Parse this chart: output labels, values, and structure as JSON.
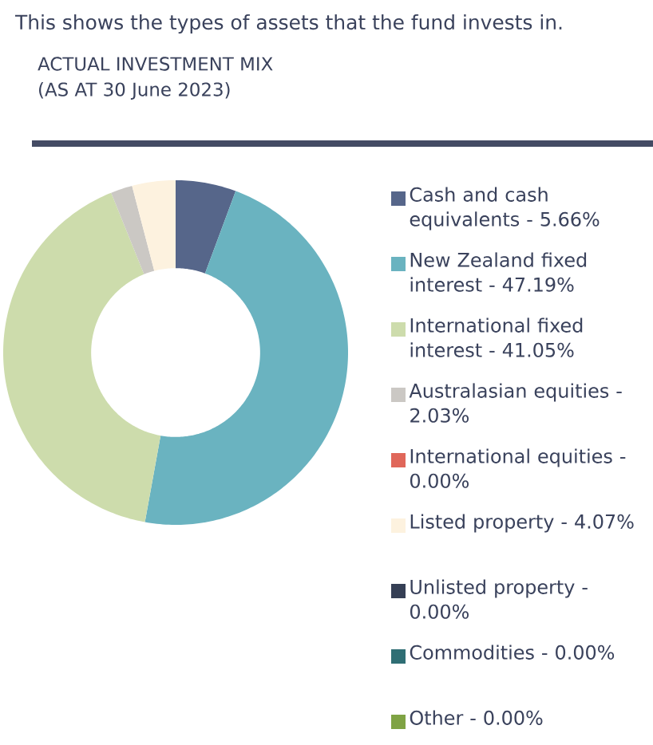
{
  "chart_data": {
    "type": "donut",
    "title": "ACTUAL INVESTMENT MIX",
    "subtitle": "(AS AT 30 June 2023)",
    "annotations": [
      "This shows the types of assets that the fund invests in."
    ],
    "categories": [
      "Cash and cash equivalents - 5.66%",
      "New Zealand fixed interest - 47.19%",
      "International fixed interest - 41.05%",
      "Australasian equities - 2.03%",
      "International equities - 0.00%",
      "Listed property - 4.07%",
      "Unlisted property - 0.00%",
      "Commodities - 0.00%",
      "Other - 0.00%"
    ],
    "values": [
      5.66,
      47.19,
      41.05,
      2.03,
      0.0,
      4.07,
      0.0,
      0.0,
      0.0
    ],
    "colors": [
      "#56668a",
      "#6ab3c0",
      "#cddcac",
      "#cbc8c4",
      "#e0675a",
      "#fdf2df",
      "#353f55",
      "#2f6e74",
      "#7fa344"
    ],
    "legend": "right"
  }
}
